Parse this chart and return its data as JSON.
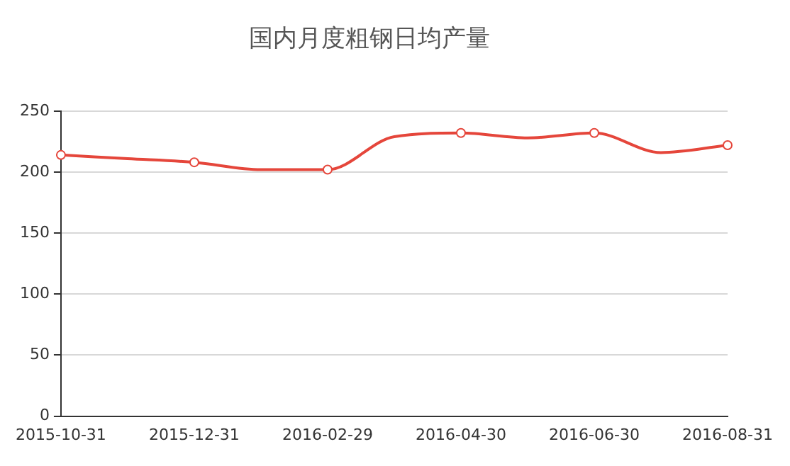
{
  "chart_data": {
    "type": "line",
    "title": "国内月度粗钢日均产量",
    "categories": [
      "2015-10-31",
      null,
      "2015-12-31",
      null,
      "2016-02-29",
      null,
      "2016-04-30",
      null,
      "2016-06-30",
      null,
      "2016-08-31"
    ],
    "series": [
      {
        "color": "#e5463b",
        "values": [
          214,
          211,
          208,
          202,
          202,
          229,
          232,
          228,
          232,
          216,
          222
        ]
      }
    ],
    "ylim": [
      0,
      250
    ],
    "yticks": [
      0,
      50,
      100,
      150,
      200,
      250
    ],
    "grid": "y",
    "legend": false,
    "marker": "circle",
    "line_style": "solid"
  }
}
